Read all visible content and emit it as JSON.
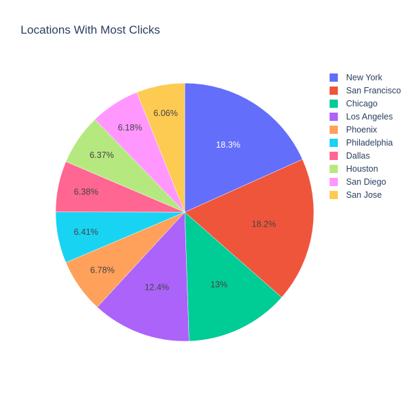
{
  "chart_data": {
    "type": "pie",
    "title": "Locations With Most Clicks",
    "labels": [
      "New York",
      "San Francisco",
      "Chicago",
      "Los Angeles",
      "Phoenix",
      "Philadelphia",
      "Dallas",
      "Houston",
      "San Diego",
      "San Jose"
    ],
    "values": [
      18.3,
      18.2,
      13.0,
      12.4,
      6.78,
      6.41,
      6.38,
      6.37,
      6.18,
      6.06
    ],
    "slice_text": [
      "18.3%",
      "18.2%",
      "13%",
      "12.4%",
      "6.78%",
      "6.41%",
      "6.38%",
      "6.37%",
      "6.18%",
      "6.06%"
    ],
    "colors": [
      "#636efa",
      "#EF553B",
      "#00cc96",
      "#ab63fa",
      "#FFA15A",
      "#19d3f3",
      "#FF6692",
      "#B6E880",
      "#FF97FF",
      "#FECB52"
    ],
    "direction": "counterclockwise-order-drawn-clockwise",
    "legend_position": "right",
    "text_colors": {
      "dark": "#444444",
      "light": "#ffffff"
    }
  }
}
